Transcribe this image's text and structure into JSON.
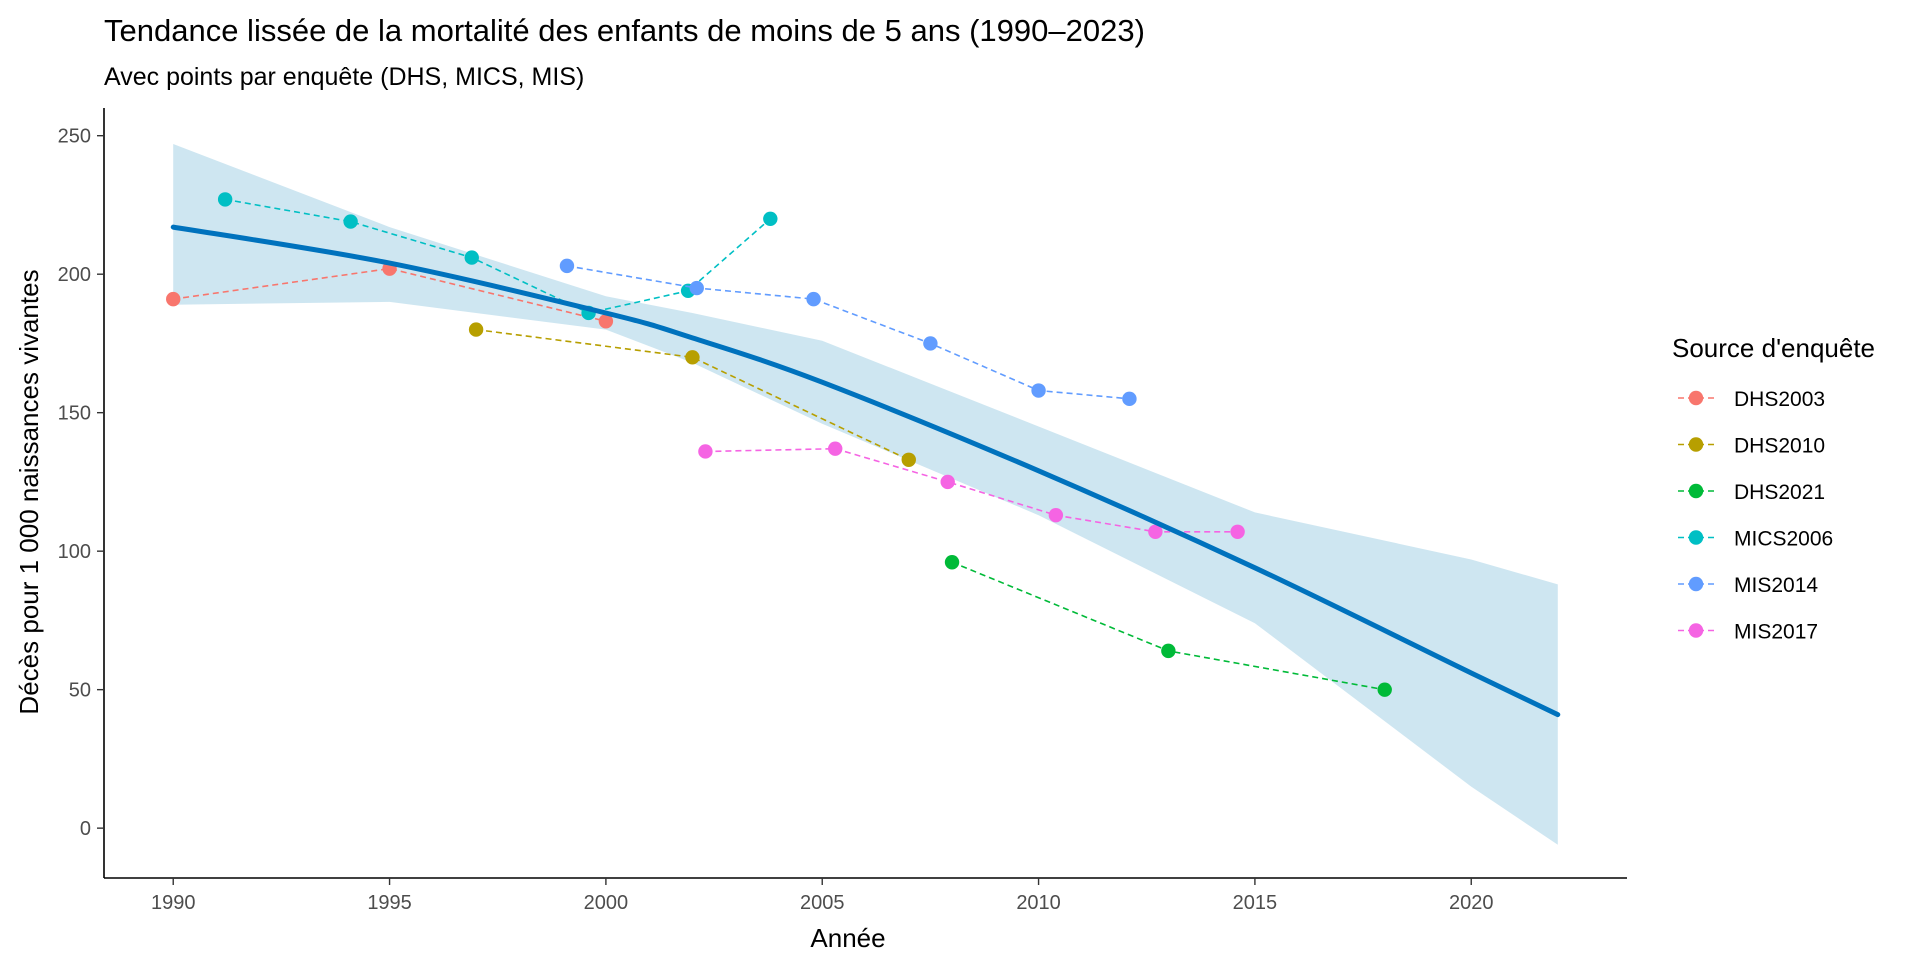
{
  "chart_data": {
    "type": "line",
    "title": "Tendance lissée de la mortalité des enfants de moins de 5 ans (1990–2023)",
    "subtitle": "Avec points par enquête (DHS, MICS, MIS)",
    "xlabel": "Année",
    "ylabel": "Décès pour 1 000 naissances vivantes",
    "xlim": [
      1988.4,
      2023.6
    ],
    "ylim": [
      -18,
      260
    ],
    "xticks": [
      1990,
      1995,
      2000,
      2005,
      2010,
      2015,
      2020
    ],
    "yticks": [
      0,
      50,
      100,
      150,
      200,
      250
    ],
    "grid": false,
    "legend": {
      "title": "Source d'enquête",
      "position": "right"
    },
    "series": [
      {
        "name": "DHS2003",
        "color": "#F8766D",
        "x": [
          1990,
          1995,
          2000
        ],
        "y": [
          191,
          202,
          183
        ]
      },
      {
        "name": "DHS2010",
        "color": "#B79F00",
        "x": [
          1997,
          2002,
          2007
        ],
        "y": [
          180,
          170,
          133
        ]
      },
      {
        "name": "DHS2021",
        "color": "#00BA38",
        "x": [
          2008,
          2013,
          2018
        ],
        "y": [
          96,
          64,
          50
        ]
      },
      {
        "name": "MICS2006",
        "color": "#00BFC4",
        "x": [
          1991.2,
          1994.1,
          1996.9,
          1999.6,
          2001.9,
          2003.8
        ],
        "y": [
          227,
          219,
          206,
          186,
          194,
          220
        ]
      },
      {
        "name": "MIS2014",
        "color": "#619CFF",
        "x": [
          1999.1,
          2002.1,
          2004.8,
          2007.5,
          2010,
          2012.1
        ],
        "y": [
          203,
          195,
          191,
          175,
          158,
          155
        ]
      },
      {
        "name": "MIS2017",
        "color": "#F564E3",
        "x": [
          2002.3,
          2005.3,
          2007.9,
          2010.4,
          2012.7,
          2014.6
        ],
        "y": [
          136,
          137,
          125,
          113,
          107,
          107
        ]
      }
    ],
    "trend": {
      "color": "#0072BD",
      "band_color": "#c6e2ef",
      "x": [
        1990,
        1995,
        2000,
        2002,
        2005,
        2010,
        2015,
        2020,
        2022
      ],
      "y": [
        217,
        204,
        186,
        177,
        161,
        129,
        94,
        56,
        41
      ],
      "lower": [
        189,
        190,
        180,
        168,
        146,
        113,
        74,
        15,
        -6
      ],
      "upper": [
        247,
        217,
        192,
        186,
        176,
        145,
        114,
        97,
        88
      ]
    }
  }
}
